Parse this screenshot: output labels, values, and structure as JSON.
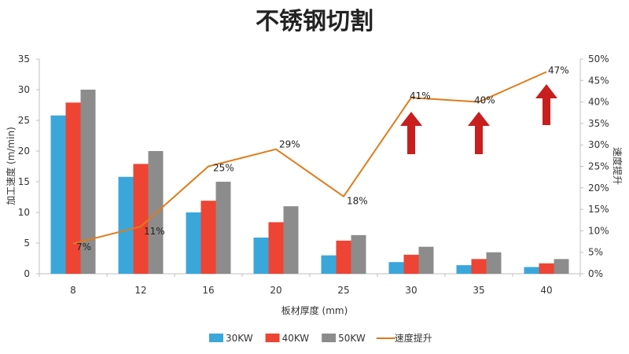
{
  "chart_data": {
    "type": "bar",
    "title": "不锈钢切割",
    "xlabel": "板材厚度 (mm)",
    "ylabel": "加工速度 (m/min)",
    "y2label": "速度提升",
    "categories": [
      "8",
      "12",
      "16",
      "20",
      "25",
      "30",
      "35",
      "40"
    ],
    "ylim": [
      0,
      35
    ],
    "yticks": [
      "0",
      "5",
      "10",
      "15",
      "20",
      "25",
      "30",
      "35"
    ],
    "y2lim": [
      0,
      50
    ],
    "y2ticks": [
      "0%",
      "5%",
      "10%",
      "15%",
      "20%",
      "25%",
      "30%",
      "35%",
      "40%",
      "45%",
      "50%"
    ],
    "series": [
      {
        "name": "30KW",
        "type": "bar",
        "color": "#3aa7db",
        "values": [
          25.8,
          15.8,
          10,
          5.9,
          3,
          1.9,
          1.4,
          1.1
        ]
      },
      {
        "name": "40KW",
        "type": "bar",
        "color": "#ee4433",
        "values": [
          27.9,
          17.9,
          11.9,
          8.4,
          5.4,
          3.1,
          2.4,
          1.7
        ]
      },
      {
        "name": "50KW",
        "type": "bar",
        "color": "#8c8c8c",
        "values": [
          30,
          20,
          15,
          11,
          6.3,
          4.4,
          3.5,
          2.4
        ]
      },
      {
        "name": "速度提升",
        "type": "line",
        "axis": "right",
        "color": "#e07b1a",
        "values": [
          7,
          11,
          25,
          29,
          18,
          41,
          40,
          47
        ],
        "labels": [
          "7%",
          "11%",
          "25%",
          "29%",
          "18%",
          "41%",
          "40%",
          "47%"
        ]
      }
    ],
    "arrows": {
      "color": "#c81e1e",
      "categories": [
        "30",
        "35",
        "40"
      ],
      "icon": "up-arrow-icon"
    },
    "grid": false,
    "legend": "bottom"
  }
}
